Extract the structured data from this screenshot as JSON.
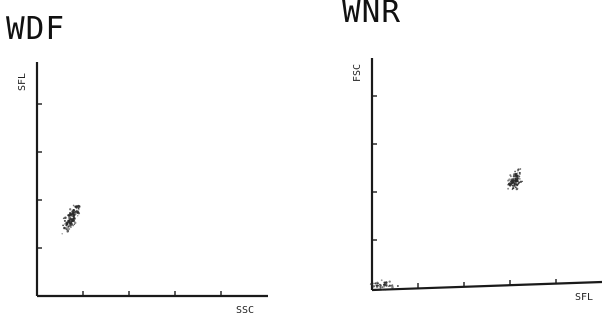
{
  "colors": {
    "ink": "#1a1a1a",
    "dots": "#2a2a2a",
    "background": "#ffffff"
  },
  "chart_data": [
    {
      "type": "scatter",
      "title": "WDF",
      "xlabel": "SSC",
      "ylabel": "SFL",
      "xlim": [
        0,
        10
      ],
      "ylim": [
        0,
        10
      ],
      "grid": false,
      "cluster": {
        "center": [
          1.5,
          3.3
        ],
        "spread": [
          0.2,
          0.35
        ]
      }
    },
    {
      "type": "scatter",
      "title": "WNR",
      "xlabel": "SFL",
      "ylabel": "FSC",
      "xlim": [
        0,
        10
      ],
      "ylim": [
        0,
        10
      ],
      "grid": false,
      "cluster": {
        "center": [
          6.2,
          4.7
        ],
        "spread": [
          0.2,
          0.25
        ]
      },
      "debris_cluster": {
        "center": [
          0.5,
          0.2
        ],
        "spread": [
          0.4,
          0.12
        ]
      }
    }
  ]
}
